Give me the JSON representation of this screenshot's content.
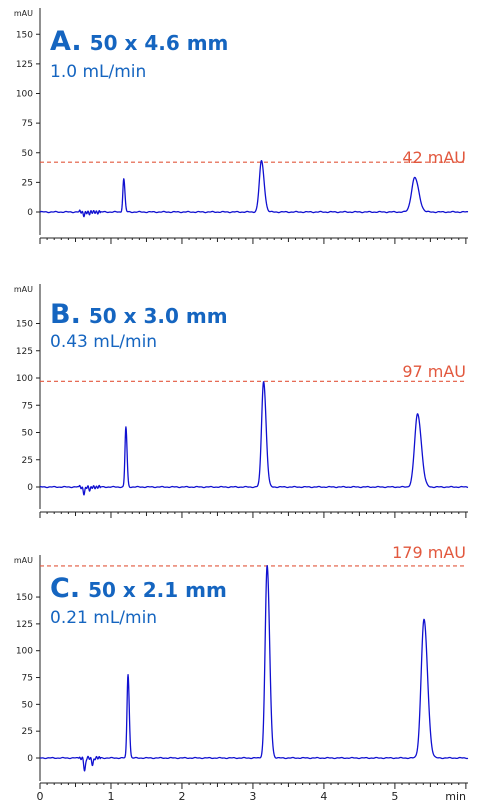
{
  "chart_data": [
    {
      "type": "line",
      "panel_letter": "A.",
      "column": "50 x 4.6 mm",
      "flow": "1.0 mL/min",
      "ylabel": "mAU",
      "xlabel": "",
      "ylim": [
        -20,
        175
      ],
      "xlim": [
        0,
        6.03
      ],
      "yticks": [
        0,
        25,
        50,
        75,
        100,
        125,
        150
      ],
      "xticks": [
        0,
        1,
        2,
        3,
        4,
        5
      ],
      "xtick_labels": [],
      "reference_line": {
        "value": 42,
        "label": "42 mAU"
      },
      "peaks": [
        {
          "x": 1.18,
          "height": 28,
          "width": 0.013
        },
        {
          "x": 3.12,
          "height": 43,
          "width": 0.03
        },
        {
          "x": 5.28,
          "height": 29,
          "width": 0.045
        }
      ],
      "disturbance": [
        {
          "x": 0.62,
          "depth": -2.5
        },
        {
          "x": 0.7,
          "depth": -1.5
        }
      ],
      "grid": false
    },
    {
      "type": "line",
      "panel_letter": "B.",
      "column": "50 x 3.0 mm",
      "flow": "0.43 mL/min",
      "ylabel": "mAU",
      "xlabel": "",
      "ylim": [
        -20,
        175
      ],
      "xlim": [
        0,
        6.03
      ],
      "yticks": [
        0,
        25,
        50,
        75,
        100,
        125,
        150
      ],
      "xticks": [
        0,
        1,
        2,
        3,
        4,
        5
      ],
      "xtick_labels": [],
      "reference_line": {
        "value": 97,
        "label": "97 mAU"
      },
      "peaks": [
        {
          "x": 1.21,
          "height": 55,
          "width": 0.013
        },
        {
          "x": 3.15,
          "height": 97,
          "width": 0.028
        },
        {
          "x": 5.32,
          "height": 67,
          "width": 0.042
        }
      ],
      "disturbance": [
        {
          "x": 0.62,
          "depth": -6
        },
        {
          "x": 0.7,
          "depth": -3
        }
      ],
      "grid": false
    },
    {
      "type": "line",
      "panel_letter": "C.",
      "column": "50 x 2.1 mm",
      "flow": "0.21 mL/min",
      "ylabel": "mAU",
      "xlabel": "min",
      "ylim": [
        -20,
        190
      ],
      "xlim": [
        0,
        6.03
      ],
      "yticks": [
        0,
        25,
        50,
        75,
        100,
        125,
        150
      ],
      "xticks": [
        0,
        1,
        2,
        3,
        4,
        5
      ],
      "xtick_labels": [
        "0",
        "1",
        "2",
        "3",
        "4",
        "5"
      ],
      "reference_line": {
        "value": 179,
        "label": "179 mAU"
      },
      "peaks": [
        {
          "x": 1.24,
          "height": 78,
          "width": 0.014
        },
        {
          "x": 3.2,
          "height": 179,
          "width": 0.028
        },
        {
          "x": 5.41,
          "height": 129,
          "width": 0.04
        }
      ],
      "disturbance": [
        {
          "x": 0.63,
          "depth": -12
        },
        {
          "x": 0.74,
          "depth": -6
        }
      ],
      "grid": false
    }
  ]
}
